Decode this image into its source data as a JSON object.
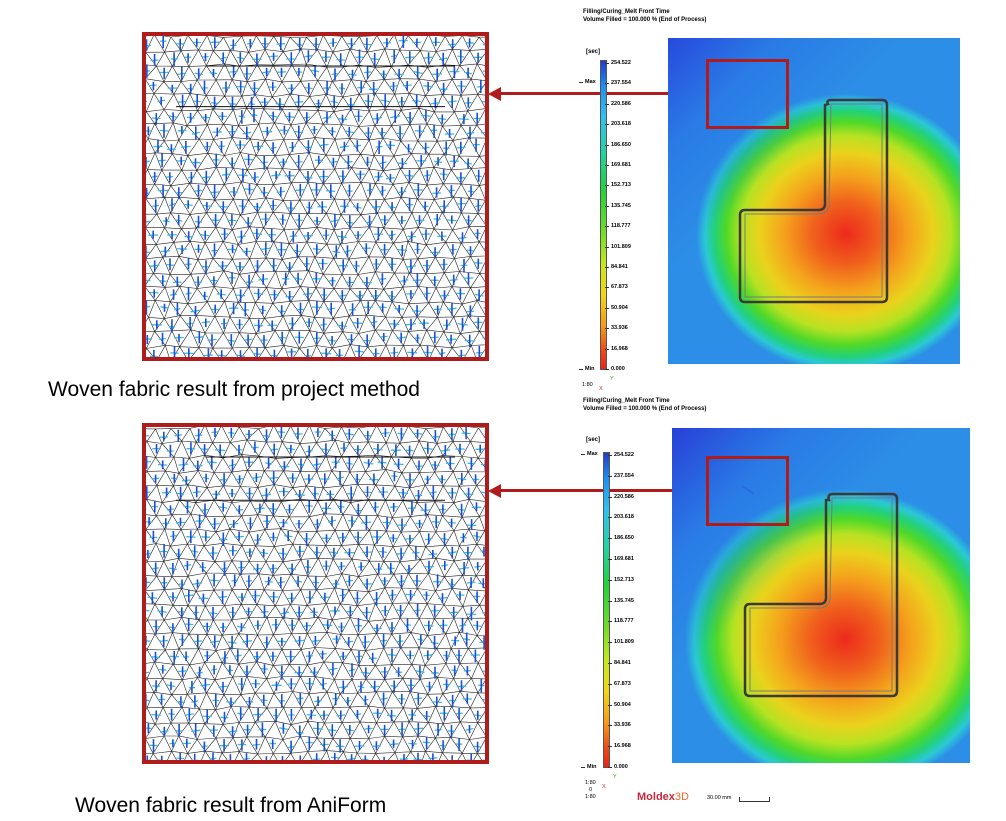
{
  "captions": {
    "top": "Woven fabric result from project method",
    "bottom": "Woven fabric result from AniForm"
  },
  "sim_header": {
    "line1": "Filling/Curing_Melt Front Time",
    "line2": "Volume Filled = 100.000 % (End of Process)"
  },
  "legend": {
    "unit": "[sec]",
    "max_label": "Max",
    "min_label": "Min",
    "ticks": [
      "254.522",
      "237.554",
      "220.586",
      "203.618",
      "186.650",
      "169.681",
      "152.713",
      "135.745",
      "118.777",
      "101.809",
      "84.841",
      "67.873",
      "50.904",
      "33.936",
      "16.968",
      "0.000"
    ]
  },
  "axis_triad_top": {
    "scale": "1:80",
    "y": "Y",
    "x": "X"
  },
  "axis_triad_bottom": {
    "scale": "1:80",
    "y": "Y",
    "x": "X",
    "z": "0",
    "zlabel": "1:80"
  },
  "logo": {
    "brand": "Moldex3D",
    "brand_plain": "Moldex",
    "brand_accent": "3D"
  },
  "scale_bar": {
    "label": "30.00 mm"
  },
  "colors": {
    "frame_red": "#b01c1c",
    "legend_top": "#1e3cc8",
    "legend_bottom": "#e8231a"
  }
}
